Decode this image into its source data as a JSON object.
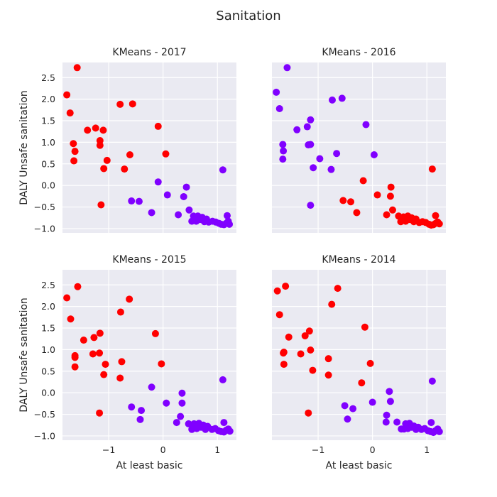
{
  "title": "Sanitation",
  "colors": {
    "red": "#ff0000",
    "purple": "#8000ff"
  },
  "chart_data": {
    "type": "scatter",
    "title": "Sanitation",
    "xlabel": "At least basic",
    "ylabel": "DALY Unsafe sanitation",
    "xlim": [
      -1.85,
      1.35
    ],
    "ylim": [
      -1.1,
      2.85
    ],
    "xticks": [
      -1,
      0,
      1
    ],
    "xtick_labels": [
      "−1",
      "0",
      "1"
    ],
    "yticks": [
      -1,
      -0.5,
      0,
      0.5,
      1,
      1.5,
      2,
      2.5
    ],
    "ytick_labels": [
      "−1.0",
      "−0.5",
      "0.0",
      "0.5",
      "1.0",
      "1.5",
      "2.0",
      "2.5"
    ],
    "grid": true,
    "sharex": true,
    "sharey": true,
    "panels": [
      {
        "title": "KMeans - 2017",
        "groups": [
          {
            "color": "red",
            "points": [
              [
                -1.58,
                2.73
              ],
              [
                -1.77,
                2.1
              ],
              [
                -1.71,
                1.68
              ],
              [
                -1.39,
                1.28
              ],
              [
                -1.24,
                1.33
              ],
              [
                -1.1,
                1.28
              ],
              [
                -0.79,
                1.88
              ],
              [
                -0.56,
                1.89
              ],
              [
                -1.65,
                0.97
              ],
              [
                -1.16,
                1.04
              ],
              [
                -1.16,
                0.93
              ],
              [
                -1.62,
                0.79
              ],
              [
                -1.64,
                0.57
              ],
              [
                -1.03,
                0.58
              ],
              [
                -1.09,
                0.39
              ],
              [
                -0.71,
                0.38
              ],
              [
                -0.61,
                0.71
              ],
              [
                -0.09,
                1.37
              ],
              [
                0.05,
                0.73
              ],
              [
                -1.14,
                -0.45
              ]
            ]
          },
          {
            "color": "purple",
            "points": [
              [
                -0.58,
                -0.36
              ],
              [
                -0.44,
                -0.37
              ],
              [
                -0.21,
                -0.63
              ],
              [
                -0.09,
                0.08
              ],
              [
                0.08,
                -0.22
              ],
              [
                0.28,
                -0.68
              ],
              [
                0.38,
                -0.26
              ],
              [
                0.43,
                -0.04
              ],
              [
                0.48,
                -0.57
              ],
              [
                0.53,
                -0.83
              ],
              [
                0.56,
                -0.71
              ],
              [
                0.61,
                -0.83
              ],
              [
                0.64,
                -0.71
              ],
              [
                0.68,
                -0.79
              ],
              [
                0.72,
                -0.74
              ],
              [
                0.76,
                -0.84
              ],
              [
                0.8,
                -0.78
              ],
              [
                0.84,
                -0.85
              ],
              [
                0.91,
                -0.83
              ],
              [
                0.97,
                -0.85
              ],
              [
                1.03,
                -0.88
              ],
              [
                1.07,
                -0.9
              ],
              [
                1.12,
                -0.91
              ],
              [
                1.16,
                -0.88
              ],
              [
                1.2,
                -0.83
              ],
              [
                1.22,
                -0.9
              ],
              [
                1.18,
                -0.7
              ],
              [
                1.1,
                0.36
              ]
            ]
          }
        ]
      },
      {
        "title": "KMeans - 2016",
        "groups": [
          {
            "color": "purple",
            "points": [
              [
                -1.57,
                2.73
              ],
              [
                -1.77,
                2.16
              ],
              [
                -1.71,
                1.78
              ],
              [
                -1.65,
                0.95
              ],
              [
                -1.64,
                0.8
              ],
              [
                -1.65,
                0.61
              ],
              [
                -1.39,
                1.29
              ],
              [
                -1.2,
                1.36
              ],
              [
                -1.14,
                1.52
              ],
              [
                -1.18,
                0.94
              ],
              [
                -1.14,
                0.95
              ],
              [
                -1.09,
                0.41
              ],
              [
                -0.97,
                0.62
              ],
              [
                -0.74,
                1.98
              ],
              [
                -0.56,
                2.02
              ],
              [
                -0.76,
                0.37
              ],
              [
                -0.66,
                0.74
              ],
              [
                -1.14,
                -0.46
              ],
              [
                -0.12,
                1.41
              ],
              [
                0.03,
                0.71
              ]
            ]
          },
          {
            "color": "red",
            "points": [
              [
                -0.54,
                -0.35
              ],
              [
                -0.4,
                -0.38
              ],
              [
                -0.29,
                -0.63
              ],
              [
                -0.17,
                0.11
              ],
              [
                0.09,
                -0.22
              ],
              [
                0.26,
                -0.68
              ],
              [
                0.33,
                -0.25
              ],
              [
                0.34,
                -0.04
              ],
              [
                0.37,
                -0.57
              ],
              [
                0.48,
                -0.71
              ],
              [
                0.52,
                -0.84
              ],
              [
                0.57,
                -0.73
              ],
              [
                0.61,
                -0.83
              ],
              [
                0.65,
                -0.71
              ],
              [
                0.69,
                -0.79
              ],
              [
                0.72,
                -0.75
              ],
              [
                0.76,
                -0.84
              ],
              [
                0.8,
                -0.78
              ],
              [
                0.86,
                -0.86
              ],
              [
                0.92,
                -0.84
              ],
              [
                0.98,
                -0.86
              ],
              [
                1.04,
                -0.9
              ],
              [
                1.08,
                -0.92
              ],
              [
                1.12,
                -0.91
              ],
              [
                1.16,
                -0.88
              ],
              [
                1.2,
                -0.85
              ],
              [
                1.23,
                -0.89
              ],
              [
                1.16,
                -0.7
              ],
              [
                1.1,
                0.38
              ]
            ]
          }
        ]
      },
      {
        "title": "KMeans - 2015",
        "groups": [
          {
            "color": "red",
            "points": [
              [
                -1.57,
                2.46
              ],
              [
                -1.77,
                2.2
              ],
              [
                -1.7,
                1.71
              ],
              [
                -1.46,
                1.22
              ],
              [
                -1.16,
                1.38
              ],
              [
                -0.78,
                1.87
              ],
              [
                -0.62,
                2.17
              ],
              [
                -1.27,
                1.28
              ],
              [
                -1.29,
                0.9
              ],
              [
                -1.62,
                0.86
              ],
              [
                -1.62,
                0.82
              ],
              [
                -1.62,
                0.6
              ],
              [
                -1.17,
                0.92
              ],
              [
                -1.06,
                0.66
              ],
              [
                -1.09,
                0.42
              ],
              [
                -0.76,
                0.72
              ],
              [
                -0.79,
                0.34
              ],
              [
                -0.14,
                1.37
              ],
              [
                -0.03,
                0.67
              ],
              [
                -1.17,
                -0.47
              ]
            ]
          },
          {
            "color": "purple",
            "points": [
              [
                -0.58,
                -0.33
              ],
              [
                -0.4,
                -0.41
              ],
              [
                -0.42,
                -0.62
              ],
              [
                -0.21,
                0.13
              ],
              [
                0.06,
                -0.24
              ],
              [
                0.25,
                -0.69
              ],
              [
                0.32,
                -0.55
              ],
              [
                0.35,
                -0.24
              ],
              [
                0.35,
                -0.01
              ],
              [
                0.47,
                -0.72
              ],
              [
                0.53,
                -0.85
              ],
              [
                0.57,
                -0.72
              ],
              [
                0.62,
                -0.83
              ],
              [
                0.66,
                -0.71
              ],
              [
                0.7,
                -0.8
              ],
              [
                0.74,
                -0.75
              ],
              [
                0.78,
                -0.85
              ],
              [
                0.82,
                -0.78
              ],
              [
                0.9,
                -0.85
              ],
              [
                0.96,
                -0.83
              ],
              [
                1.02,
                -0.88
              ],
              [
                1.07,
                -0.9
              ],
              [
                1.12,
                -0.91
              ],
              [
                1.16,
                -0.87
              ],
              [
                1.2,
                -0.84
              ],
              [
                1.23,
                -0.89
              ],
              [
                1.12,
                -0.69
              ],
              [
                1.1,
                0.3
              ]
            ]
          }
        ]
      },
      {
        "title": "KMeans - 2014",
        "groups": [
          {
            "color": "red",
            "points": [
              [
                -1.6,
                2.47
              ],
              [
                -1.75,
                2.36
              ],
              [
                -1.71,
                1.81
              ],
              [
                -1.54,
                1.29
              ],
              [
                -1.24,
                1.32
              ],
              [
                -1.16,
                1.43
              ],
              [
                -0.64,
                2.42
              ],
              [
                -0.75,
                2.05
              ],
              [
                -0.14,
                1.52
              ],
              [
                -1.32,
                0.9
              ],
              [
                -1.63,
                0.94
              ],
              [
                -1.64,
                0.92
              ],
              [
                -1.63,
                0.66
              ],
              [
                -1.14,
                0.99
              ],
              [
                -1.1,
                0.52
              ],
              [
                -0.81,
                0.79
              ],
              [
                -0.81,
                0.41
              ],
              [
                -0.2,
                0.23
              ],
              [
                -0.04,
                0.68
              ],
              [
                -1.18,
                -0.47
              ]
            ]
          },
          {
            "color": "purple",
            "points": [
              [
                -0.51,
                -0.3
              ],
              [
                -0.36,
                -0.37
              ],
              [
                -0.46,
                -0.61
              ],
              [
                0.0,
                -0.22
              ],
              [
                0.26,
                -0.52
              ],
              [
                0.25,
                -0.68
              ],
              [
                0.33,
                -0.2
              ],
              [
                0.31,
                0.03
              ],
              [
                0.45,
                -0.68
              ],
              [
                0.53,
                -0.84
              ],
              [
                0.58,
                -0.84
              ],
              [
                0.61,
                -0.72
              ],
              [
                0.65,
                -0.83
              ],
              [
                0.68,
                -0.71
              ],
              [
                0.72,
                -0.8
              ],
              [
                0.76,
                -0.77
              ],
              [
                0.8,
                -0.85
              ],
              [
                0.84,
                -0.8
              ],
              [
                0.9,
                -0.85
              ],
              [
                0.96,
                -0.83
              ],
              [
                1.02,
                -0.88
              ],
              [
                1.07,
                -0.9
              ],
              [
                1.12,
                -0.92
              ],
              [
                1.16,
                -0.88
              ],
              [
                1.2,
                -0.84
              ],
              [
                1.23,
                -0.9
              ],
              [
                1.08,
                -0.69
              ],
              [
                1.1,
                0.27
              ]
            ]
          }
        ]
      }
    ]
  }
}
